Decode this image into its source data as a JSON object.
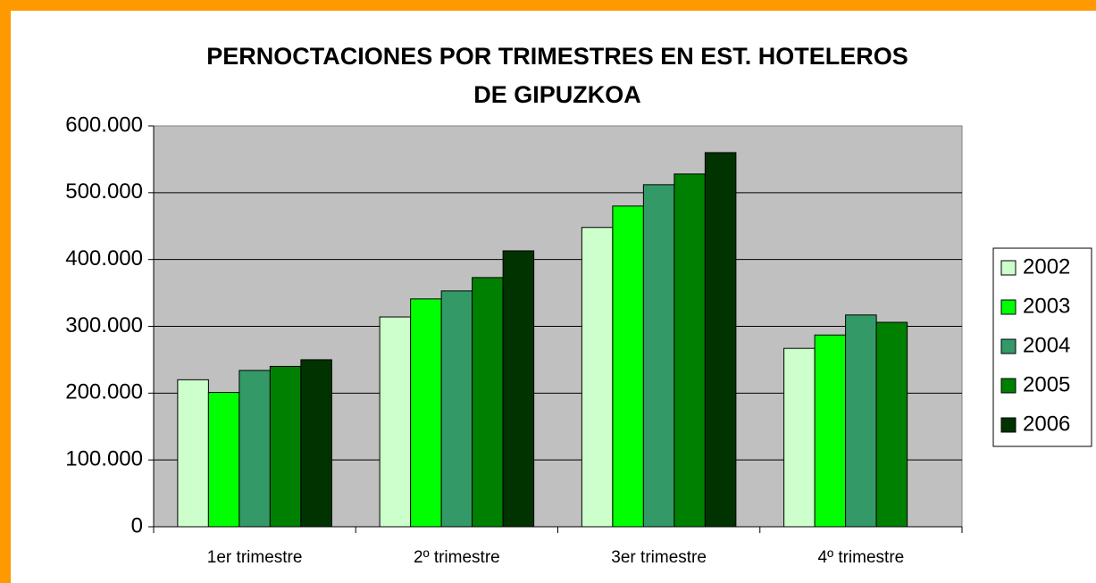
{
  "chart_data": {
    "type": "bar",
    "title": [
      "PERNOCTACIONES POR TRIMESTRES EN EST. HOTELEROS",
      "DE GIPUZKOA"
    ],
    "categories": [
      "1er trimestre",
      "2º trimestre",
      "3er trimestre",
      "4º trimestre"
    ],
    "series": [
      {
        "name": "2002",
        "color": "#ccffcc",
        "values": [
          220000,
          314000,
          448000,
          267000
        ]
      },
      {
        "name": "2003",
        "color": "#00ff00",
        "values": [
          201000,
          341000,
          480000,
          287000
        ]
      },
      {
        "name": "2004",
        "color": "#339966",
        "values": [
          234000,
          353000,
          512000,
          317000
        ]
      },
      {
        "name": "2005",
        "color": "#008000",
        "values": [
          240000,
          373000,
          528000,
          306000
        ]
      },
      {
        "name": "2006",
        "color": "#003300",
        "values": [
          250000,
          413000,
          560000,
          null
        ]
      }
    ],
    "ylim": [
      0,
      600000
    ],
    "yticks": [
      0,
      {
        "value": 100000,
        "label": "100.000"
      },
      {
        "value": 200000,
        "label": "200.000"
      },
      {
        "value": 300000,
        "label": "300.000"
      },
      {
        "value": 400000,
        "label": "400.000"
      },
      {
        "value": 500000,
        "label": "500.000"
      },
      {
        "value": 600000,
        "label": "600.000"
      }
    ],
    "grid": true,
    "legend": "right"
  }
}
